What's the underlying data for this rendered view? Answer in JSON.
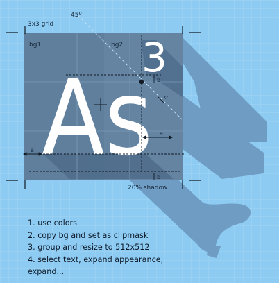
{
  "labels": {
    "angle": "45º",
    "grid": "3x3 grid",
    "bg1": "bg1",
    "bg2": "bg2",
    "glyphs": "As",
    "superscript": "3",
    "shadow": "20% shadow",
    "dim_a": "a",
    "dim_b": "b",
    "dim_c": "c"
  },
  "instructions": [
    "1. use colors",
    "2. copy bg and set as clipmask",
    "3. group and resize to 512x512",
    "4. select text, expand appearance,",
    "expand..."
  ],
  "colors": {
    "background": "#8ecbf2",
    "grid_line": "#a9d8f6",
    "tile": "#5f7f9d",
    "long_shadow": "#6f9cc2",
    "text": "#ffffff",
    "guides": "#111a24"
  },
  "shadow_opacity_percent": 20,
  "shadow_angle_degrees": 45
}
